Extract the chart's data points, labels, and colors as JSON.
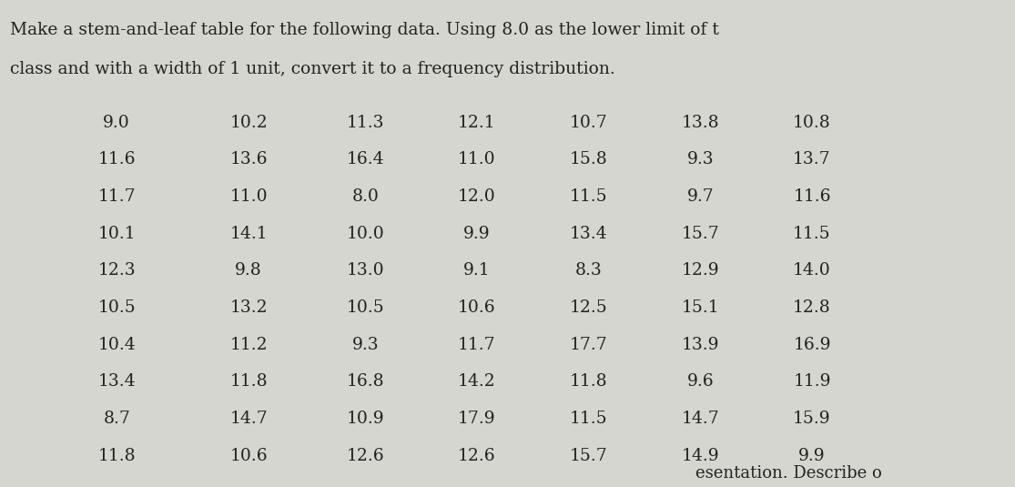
{
  "title_line1": "Make a stem-and-leaf table for the following data. Using 8.0 as the lower limit of t",
  "title_line2": "class and with a width of 1 unit, convert it to a frequency distribution.",
  "footer": "esentation. Describe o",
  "rows": [
    [
      "9.0",
      "10.2",
      "11.3",
      "12.1",
      "10.7",
      "13.8",
      "10.8"
    ],
    [
      "11.6",
      "13.6",
      "16.4",
      "11.0",
      "15.8",
      "9.3",
      "13.7"
    ],
    [
      "11.7",
      "11.0",
      "8.0",
      "12.0",
      "11.5",
      "9.7",
      "11.6"
    ],
    [
      "10.1",
      "14.1",
      "10.0",
      "9.9",
      "13.4",
      "15.7",
      "11.5"
    ],
    [
      "12.3",
      "9.8",
      "13.0",
      "9.1",
      "8.3",
      "12.9",
      "14.0"
    ],
    [
      "10.5",
      "13.2",
      "10.5",
      "10.6",
      "12.5",
      "15.1",
      "12.8"
    ],
    [
      "10.4",
      "11.2",
      "9.3",
      "11.7",
      "17.7",
      "13.9",
      "16.9"
    ],
    [
      "13.4",
      "11.8",
      "16.8",
      "14.2",
      "11.8",
      "9.6",
      "11.9"
    ],
    [
      "8.7",
      "14.7",
      "10.9",
      "17.9",
      "11.5",
      "14.7",
      "15.9"
    ],
    [
      "11.8",
      "10.6",
      "12.6",
      "12.6",
      "15.7",
      "14.9",
      "9.9"
    ]
  ],
  "bg_color": "#d6d6d0",
  "text_color": "#222222",
  "title_fontsize": 13.5,
  "data_fontsize": 13.5,
  "footer_fontsize": 13.0
}
